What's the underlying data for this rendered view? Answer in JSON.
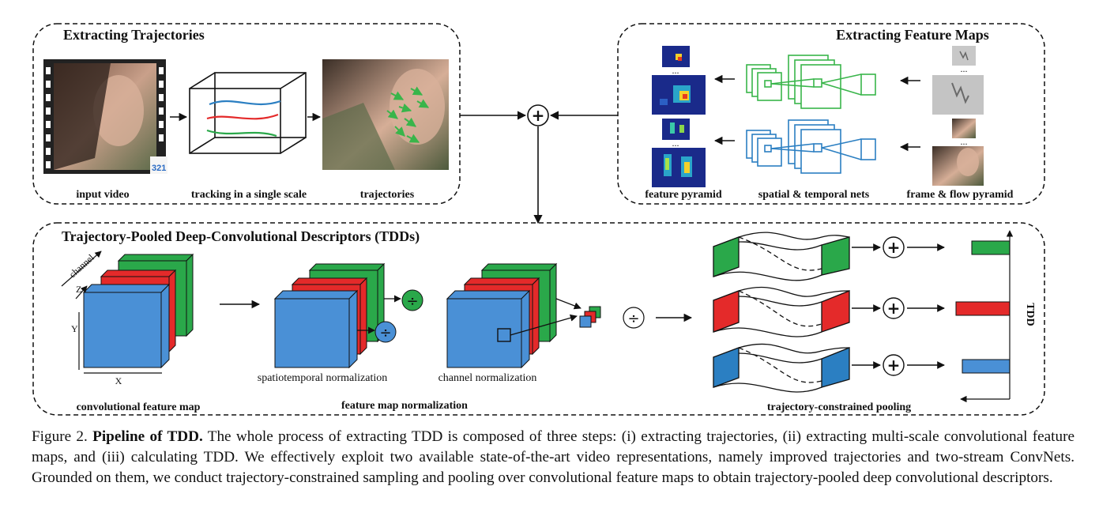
{
  "sections": {
    "trajectories": {
      "title": "Extracting Trajectories",
      "labels": [
        "input video",
        "tracking in a single scale",
        "trajectories"
      ],
      "video_badge": "321"
    },
    "feature_maps": {
      "title": "Extracting Feature Maps",
      "labels": [
        "feature pyramid",
        "spatial & temporal nets",
        "frame & flow pyramid"
      ],
      "dots": "..."
    },
    "tdd": {
      "title": "Trajectory-Pooled Deep-Convolutional Descriptors (TDDs)",
      "axes": {
        "channel": "channel",
        "z": "Z",
        "y": "Y",
        "x": "X"
      },
      "sublabels": [
        "spatiotemporal normalization",
        "channel normalization"
      ],
      "labels": [
        "convolutional feature map",
        "feature map normalization",
        "trajectory-constrained pooling"
      ],
      "tdd_label": "TDD"
    }
  },
  "symbols": {
    "plus": "+",
    "divide": "÷"
  },
  "colors": {
    "green": "#2aa84a",
    "red": "#e42a2a",
    "blue": "#4a90d6",
    "net_green": "#39b54a",
    "net_blue": "#2b7fc2"
  },
  "caption": {
    "prefix": "Figure 2.",
    "title": "Pipeline of TDD.",
    "text": "The whole process of extracting TDD is composed of three steps: (i) extracting trajectories, (ii) extracting multi-scale convolutional feature maps, and (iii) calculating TDD. We effectively exploit two available state-of-the-art video representations, namely improved trajectories and two-stream ConvNets. Grounded on them, we conduct trajectory-constrained sampling and pooling over convolutional feature maps to obtain trajectory-pooled deep convolutional descriptors."
  }
}
